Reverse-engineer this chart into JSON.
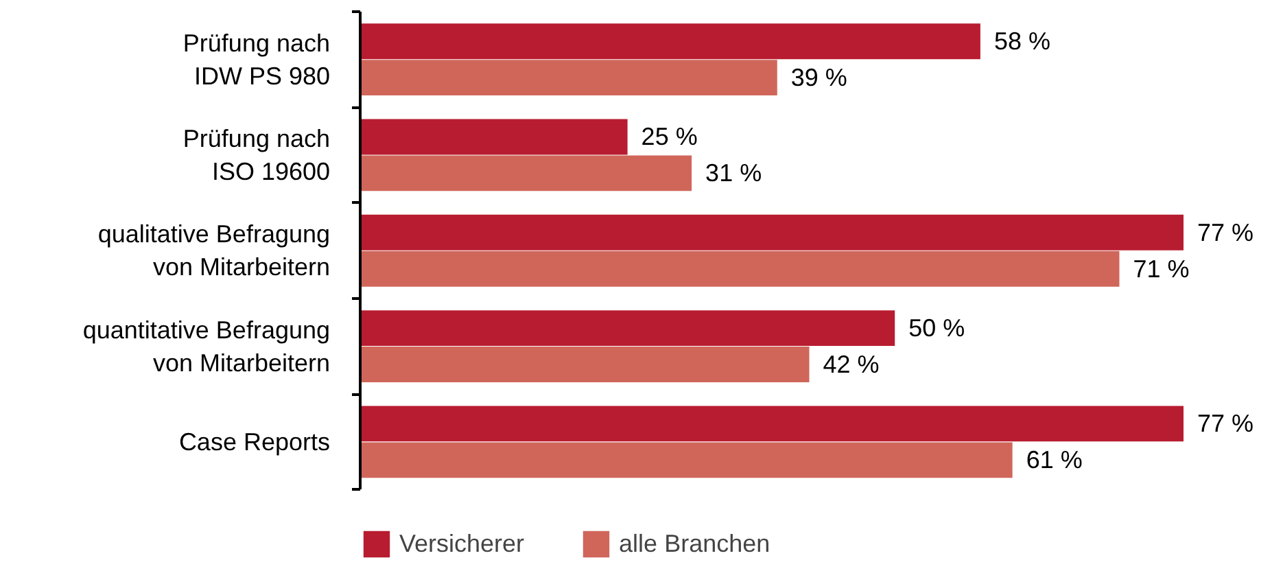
{
  "chart_data": {
    "type": "bar",
    "orientation": "horizontal",
    "categories": [
      "Prüfung nach\nIDW PS 980",
      "Prüfung nach\nISO 19600",
      "qualitative Befragung\nvon Mitarbeitern",
      "quantitative Befragung\nvon Mitarbeitern",
      "Case Reports"
    ],
    "series": [
      {
        "name": "Versicherer",
        "color": "#b81c30",
        "values": [
          58,
          25,
          77,
          50,
          77
        ],
        "value_labels": [
          "58 %",
          "25 %",
          "77 %",
          "50 %",
          "77 %"
        ]
      },
      {
        "name": "alle Branchen",
        "color": "#d0665a",
        "values": [
          39,
          31,
          71,
          42,
          61
        ],
        "value_labels": [
          "39 %",
          "31 %",
          "71 %",
          "42 %",
          "61 %"
        ]
      }
    ],
    "legend": "bottom"
  }
}
